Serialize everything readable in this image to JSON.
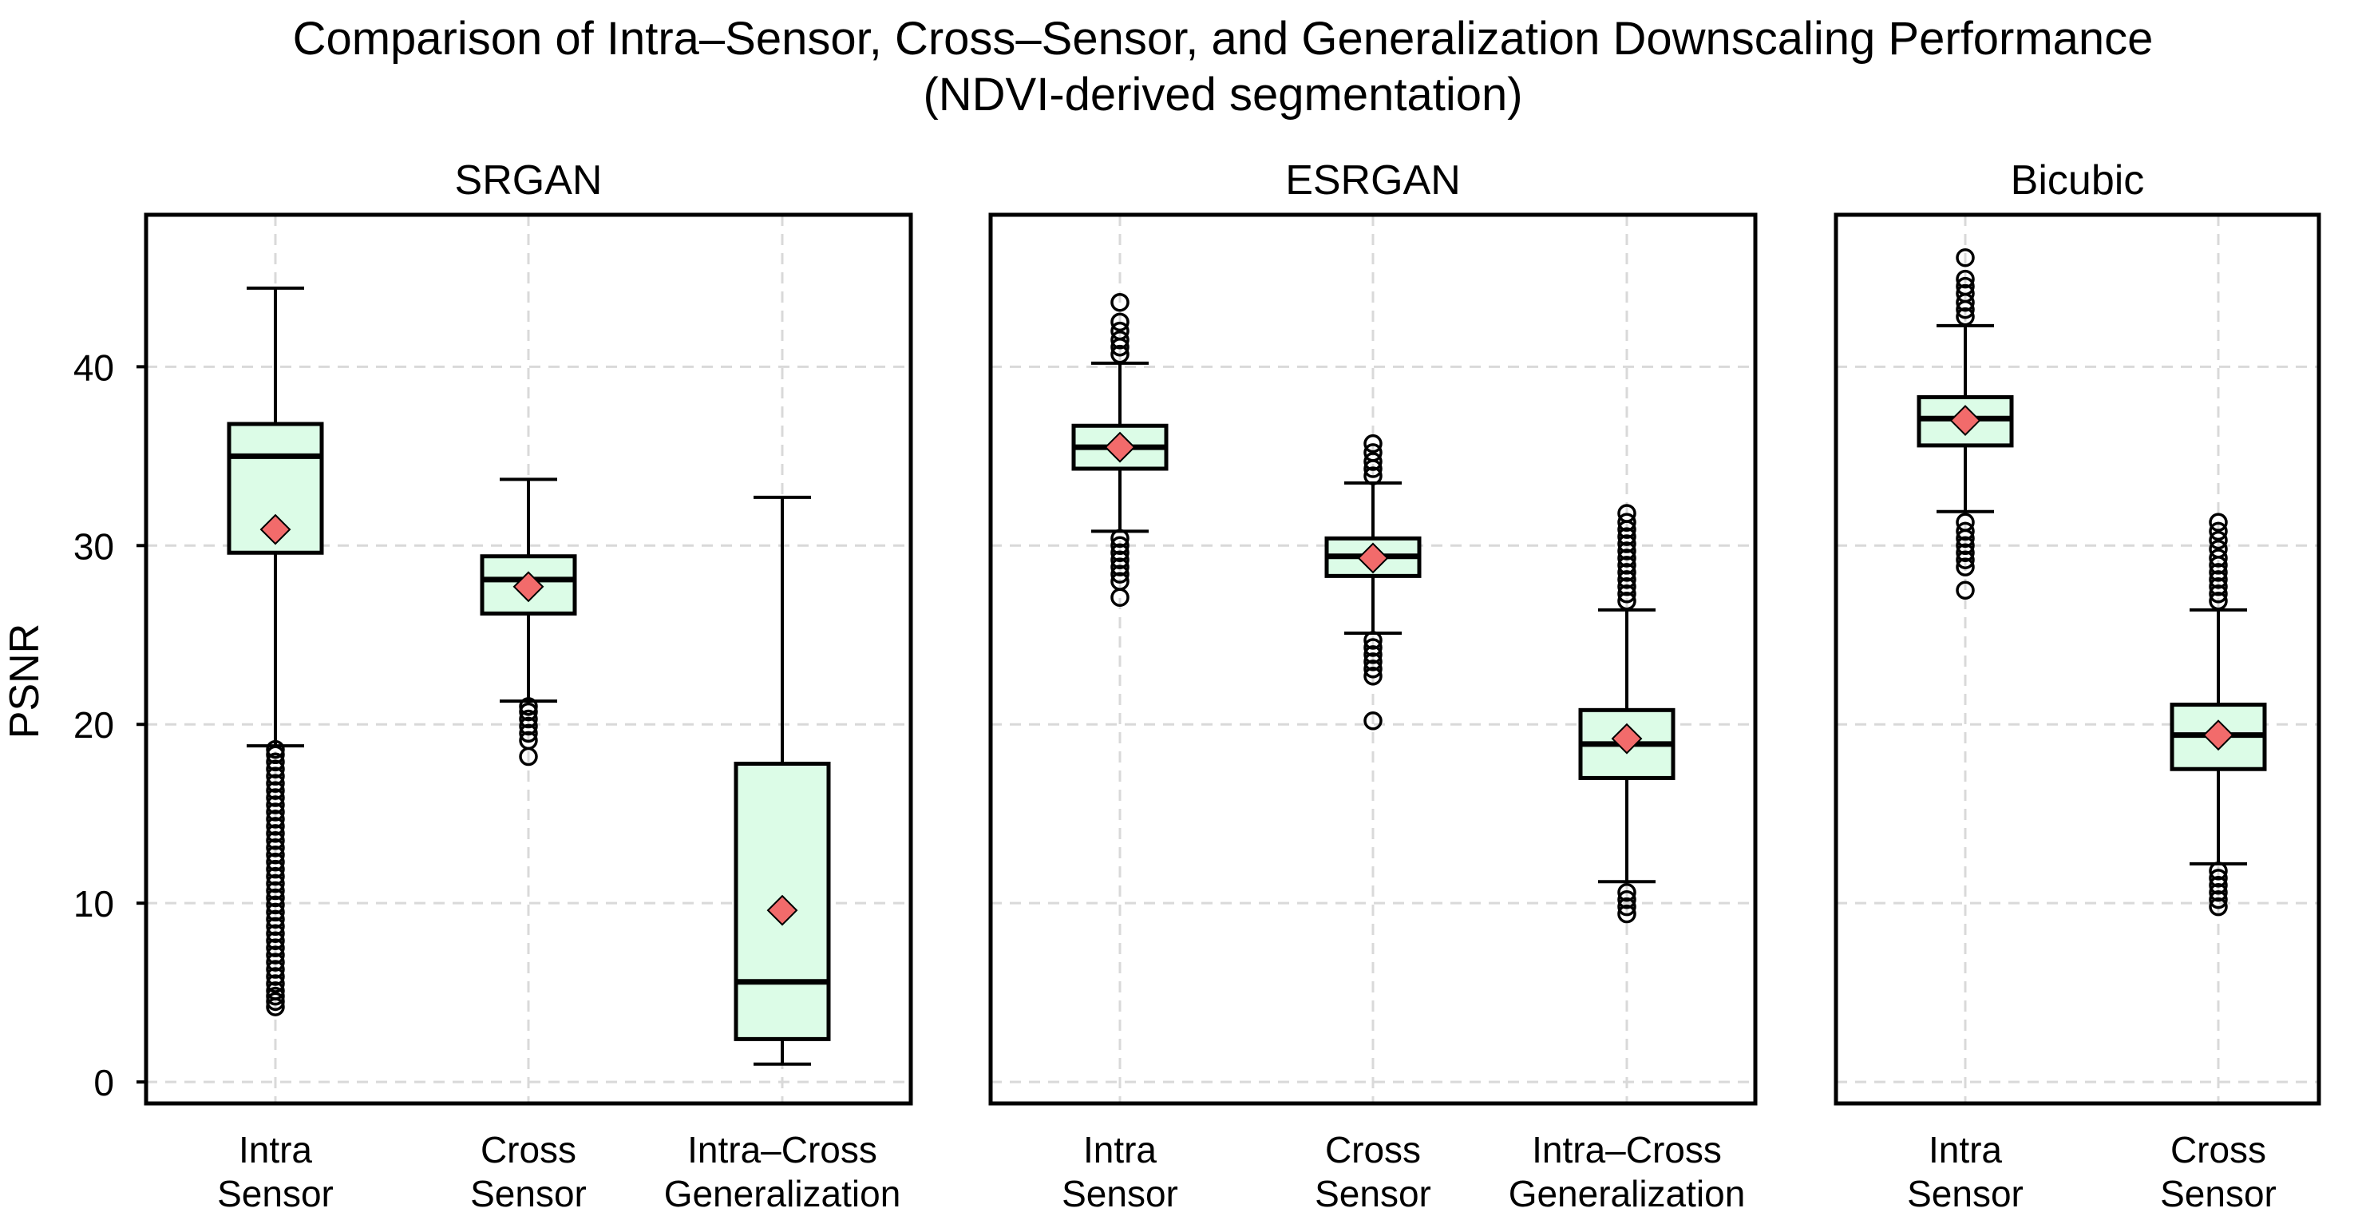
{
  "title_line1": "Comparison of Intra–Sensor, Cross–Sensor, and Generalization Downscaling Performance",
  "title_line2": "(NDVI-derived segmentation)",
  "ylabel": "PSNR",
  "colors": {
    "box_fill": "#dcfce7",
    "mean_marker": "#f26b6b",
    "grid": "#d9d9d9"
  },
  "chart_data": {
    "type": "box",
    "ylim": [
      -1.2,
      48.5
    ],
    "yticks": [
      0,
      10,
      20,
      30,
      40
    ],
    "grid": true,
    "mean_marker": "diamond",
    "panels": [
      {
        "title": "SRGAN",
        "categories": [
          {
            "label": [
              "Intra",
              "Sensor"
            ],
            "whislo": 18.8,
            "q1": 29.6,
            "med": 35.0,
            "q3": 36.8,
            "whishi": 44.4,
            "mean": 30.9,
            "fliers": [
              4.2,
              4.5,
              4.8,
              5.1,
              5.5,
              5.9,
              6.3,
              6.7,
              7.1,
              7.5,
              7.9,
              8.3,
              8.7,
              9.1,
              9.5,
              9.9,
              10.3,
              10.7,
              11.1,
              11.5,
              11.9,
              12.3,
              12.7,
              13.1,
              13.5,
              13.9,
              14.3,
              14.7,
              15.1,
              15.5,
              15.9,
              16.3,
              16.7,
              17.1,
              17.5,
              17.9,
              18.3,
              18.6
            ]
          },
          {
            "label": [
              "Cross",
              "Sensor"
            ],
            "whislo": 21.3,
            "q1": 26.2,
            "med": 28.1,
            "q3": 29.4,
            "whishi": 33.7,
            "mean": 27.7,
            "fliers": [
              18.2,
              19.1,
              19.5,
              19.9,
              20.3,
              20.7,
              21.0
            ]
          },
          {
            "label": [
              "Intra–Cross",
              "Generalization"
            ],
            "whislo": 1.0,
            "q1": 2.4,
            "med": 5.6,
            "q3": 17.8,
            "whishi": 32.7,
            "mean": 9.6,
            "fliers": []
          }
        ]
      },
      {
        "title": "ESRGAN",
        "categories": [
          {
            "label": [
              "Intra",
              "Sensor"
            ],
            "whislo": 30.8,
            "q1": 34.3,
            "med": 35.5,
            "q3": 36.7,
            "whishi": 40.2,
            "mean": 35.5,
            "fliers": [
              27.1,
              28.0,
              28.4,
              28.8,
              29.2,
              29.6,
              30.0,
              30.4,
              40.7,
              41.1,
              41.5,
              42.0,
              42.5,
              43.6
            ]
          },
          {
            "label": [
              "Cross",
              "Sensor"
            ],
            "whislo": 25.1,
            "q1": 28.3,
            "med": 29.4,
            "q3": 30.4,
            "whishi": 33.5,
            "mean": 29.3,
            "fliers": [
              20.2,
              22.7,
              23.1,
              23.5,
              23.9,
              24.3,
              24.7,
              33.9,
              34.3,
              34.7,
              35.2,
              35.7
            ]
          },
          {
            "label": [
              "Intra–Cross",
              "Generalization"
            ],
            "whislo": 11.2,
            "q1": 17.0,
            "med": 18.9,
            "q3": 20.8,
            "whishi": 26.4,
            "mean": 19.2,
            "fliers": [
              9.4,
              9.8,
              10.2,
              10.6,
              26.9,
              27.3,
              27.7,
              28.1,
              28.5,
              28.9,
              29.3,
              29.7,
              30.1,
              30.5,
              30.9,
              31.3,
              31.8
            ]
          }
        ]
      },
      {
        "title": "Bicubic",
        "categories": [
          {
            "label": [
              "Intra",
              "Sensor"
            ],
            "whislo": 31.9,
            "q1": 35.6,
            "med": 37.1,
            "q3": 38.3,
            "whishi": 42.3,
            "mean": 37.0,
            "fliers": [
              27.5,
              28.8,
              29.2,
              29.6,
              30.0,
              30.4,
              30.8,
              31.3,
              42.8,
              43.2,
              43.6,
              44.1,
              44.5,
              44.9,
              46.1
            ]
          },
          {
            "label": [
              "Cross",
              "Sensor"
            ],
            "whislo": 12.2,
            "q1": 17.5,
            "med": 19.4,
            "q3": 21.1,
            "whishi": 26.4,
            "mean": 19.4,
            "fliers": [
              9.8,
              10.2,
              10.6,
              11.0,
              11.4,
              11.8,
              26.9,
              27.3,
              27.7,
              28.1,
              28.5,
              28.9,
              29.3,
              29.8,
              30.3,
              30.8,
              31.3
            ]
          }
        ]
      }
    ]
  }
}
